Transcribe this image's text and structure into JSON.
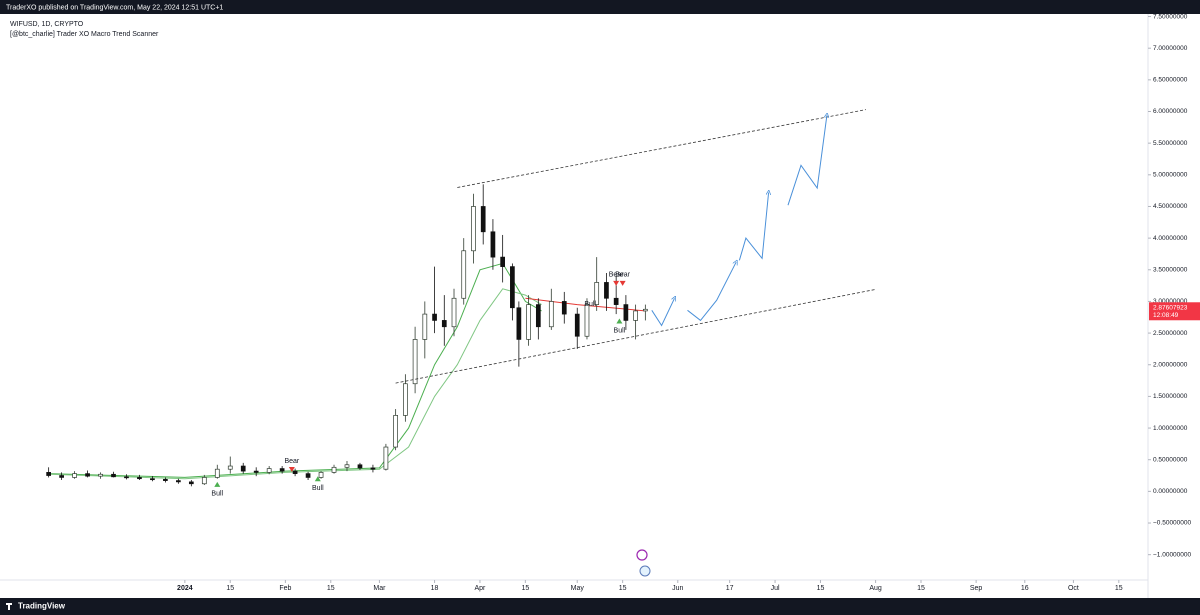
{
  "header": {
    "published": "TraderXO published on TradingView.com, May 22, 2024 12:51 UTC+1",
    "brand": "TradingView"
  },
  "chart_data": {
    "type": "candlestick",
    "title": "WIFUSD, 1D, CRYPTO",
    "subtitle": "[@btc_charlie] Trader XO Macro Trend Scanner",
    "xlim": [
      "2023-11-05",
      "2024-10-24"
    ],
    "ylim": [
      -1.4,
      7.54
    ],
    "grid": false,
    "up_color": "#2f3b2f",
    "down_color": "#111111",
    "xticks": [
      {
        "value": "2024-01-01",
        "label": "2024"
      },
      {
        "value": "2024-01-15",
        "label": "15"
      },
      {
        "value": "2024-02-01",
        "label": "Feb"
      },
      {
        "value": "2024-02-15",
        "label": "15"
      },
      {
        "value": "2024-03-01",
        "label": "Mar"
      },
      {
        "value": "2024-03-18",
        "label": "18"
      },
      {
        "value": "2024-04-01",
        "label": "Apr"
      },
      {
        "value": "2024-04-15",
        "label": "15"
      },
      {
        "value": "2024-05-01",
        "label": "May"
      },
      {
        "value": "2024-05-15",
        "label": "15"
      },
      {
        "value": "2024-06-01",
        "label": "Jun"
      },
      {
        "value": "2024-06-17",
        "label": "17"
      },
      {
        "value": "2024-07-01",
        "label": "Jul"
      },
      {
        "value": "2024-07-15",
        "label": "15"
      },
      {
        "value": "2024-08-01",
        "label": "Aug"
      },
      {
        "value": "2024-08-15",
        "label": "15"
      },
      {
        "value": "2024-09-01",
        "label": "Sep"
      },
      {
        "value": "2024-09-16",
        "label": "16"
      },
      {
        "value": "2024-10-01",
        "label": "Oct"
      },
      {
        "value": "2024-10-15",
        "label": "15"
      }
    ],
    "yticks": [
      {
        "value": 7.5,
        "label": "7.50000000"
      },
      {
        "value": 7,
        "label": "7.00000000"
      },
      {
        "value": 6.5,
        "label": "6.50000000"
      },
      {
        "value": 6,
        "label": "6.00000000"
      },
      {
        "value": 5.5,
        "label": "5.50000000"
      },
      {
        "value": 5,
        "label": "5.00000000"
      },
      {
        "value": 4.5,
        "label": "4.50000000"
      },
      {
        "value": 4,
        "label": "4.00000000"
      },
      {
        "value": 3.5,
        "label": "3.50000000"
      },
      {
        "value": 3,
        "label": "3.00000000"
      },
      {
        "value": 2.5,
        "label": "2.50000000"
      },
      {
        "value": 2,
        "label": "2.00000000"
      },
      {
        "value": 1.5,
        "label": "1.50000000"
      },
      {
        "value": 1,
        "label": "1.00000000"
      },
      {
        "value": 0.5,
        "label": "0.50000000"
      },
      {
        "value": 0,
        "label": "0.00000000"
      },
      {
        "value": -0.5,
        "label": "−0.50000000"
      },
      {
        "value": -1,
        "label": "−1.00000000"
      }
    ],
    "x": [
      "2023-11-20",
      "2023-11-24",
      "2023-11-28",
      "2023-12-02",
      "2023-12-06",
      "2023-12-10",
      "2023-12-14",
      "2023-12-18",
      "2023-12-22",
      "2023-12-26",
      "2023-12-30",
      "2024-01-03",
      "2024-01-07",
      "2024-01-11",
      "2024-01-15",
      "2024-01-19",
      "2024-01-23",
      "2024-01-27",
      "2024-01-31",
      "2024-02-04",
      "2024-02-08",
      "2024-02-12",
      "2024-02-16",
      "2024-02-20",
      "2024-02-24",
      "2024-02-28",
      "2024-03-03",
      "2024-03-06",
      "2024-03-09",
      "2024-03-12",
      "2024-03-15",
      "2024-03-18",
      "2024-03-21",
      "2024-03-24",
      "2024-03-27",
      "2024-03-30",
      "2024-04-02",
      "2024-04-05",
      "2024-04-08",
      "2024-04-11",
      "2024-04-13",
      "2024-04-16",
      "2024-04-19",
      "2024-04-23",
      "2024-04-27",
      "2024-05-01",
      "2024-05-04",
      "2024-05-07",
      "2024-05-10",
      "2024-05-13",
      "2024-05-16",
      "2024-05-19",
      "2024-05-22"
    ],
    "open": [
      0.3,
      0.25,
      0.22,
      0.28,
      0.24,
      0.27,
      0.23,
      0.22,
      0.2,
      0.19,
      0.17,
      0.15,
      0.12,
      0.22,
      0.35,
      0.4,
      0.32,
      0.3,
      0.36,
      0.32,
      0.28,
      0.22,
      0.3,
      0.38,
      0.42,
      0.37,
      0.35,
      0.7,
      1.2,
      1.7,
      2.4,
      2.8,
      2.7,
      2.6,
      3.05,
      3.8,
      4.5,
      4.1,
      3.7,
      3.55,
      2.9,
      2.4,
      2.95,
      2.6,
      3.0,
      2.8,
      2.45,
      2.95,
      3.3,
      3.05,
      2.95,
      2.7,
      2.85
    ],
    "high": [
      0.38,
      0.3,
      0.32,
      0.33,
      0.3,
      0.31,
      0.27,
      0.26,
      0.24,
      0.22,
      0.2,
      0.18,
      0.26,
      0.42,
      0.55,
      0.45,
      0.38,
      0.4,
      0.4,
      0.36,
      0.31,
      0.32,
      0.42,
      0.48,
      0.45,
      0.42,
      0.75,
      1.3,
      1.85,
      2.6,
      3.0,
      3.55,
      3.1,
      3.2,
      4.0,
      4.7,
      4.85,
      4.3,
      4.05,
      3.6,
      3.0,
      3.1,
      3.05,
      3.2,
      3.15,
      2.9,
      3.05,
      3.7,
      3.45,
      3.4,
      3.1,
      2.95,
      2.95
    ],
    "low": [
      0.22,
      0.18,
      0.2,
      0.22,
      0.2,
      0.22,
      0.19,
      0.18,
      0.16,
      0.14,
      0.12,
      0.08,
      0.1,
      0.2,
      0.28,
      0.28,
      0.24,
      0.27,
      0.28,
      0.24,
      0.18,
      0.2,
      0.28,
      0.32,
      0.34,
      0.3,
      0.33,
      0.65,
      1.1,
      1.55,
      2.1,
      2.5,
      2.3,
      2.45,
      2.95,
      3.6,
      3.9,
      3.5,
      3.3,
      2.7,
      1.97,
      2.3,
      2.4,
      2.55,
      2.65,
      2.25,
      2.4,
      2.85,
      2.85,
      2.8,
      2.55,
      2.4,
      2.7
    ],
    "close": [
      0.25,
      0.22,
      0.28,
      0.24,
      0.27,
      0.23,
      0.22,
      0.2,
      0.19,
      0.17,
      0.15,
      0.12,
      0.22,
      0.35,
      0.4,
      0.32,
      0.3,
      0.36,
      0.32,
      0.28,
      0.22,
      0.3,
      0.38,
      0.42,
      0.37,
      0.35,
      0.7,
      1.2,
      1.7,
      2.4,
      2.8,
      2.7,
      2.6,
      3.05,
      3.8,
      4.5,
      4.1,
      3.7,
      3.55,
      2.9,
      2.4,
      2.95,
      2.6,
      3.0,
      2.8,
      2.45,
      2.95,
      3.3,
      3.05,
      2.95,
      2.7,
      2.85,
      2.87607923
    ],
    "moving_averages": [
      {
        "color": "#4caf50",
        "x": [
          "2023-11-20",
          "2024-01-01",
          "2024-02-01",
          "2024-03-01",
          "2024-03-10",
          "2024-03-18",
          "2024-03-25",
          "2024-04-01",
          "2024-04-08",
          "2024-04-15",
          "2024-04-20"
        ],
        "values": [
          0.28,
          0.22,
          0.32,
          0.37,
          1.0,
          2.0,
          2.6,
          3.5,
          3.6,
          3.0,
          2.85
        ]
      },
      {
        "color": "#81c784",
        "x": [
          "2023-11-20",
          "2024-01-01",
          "2024-02-01",
          "2024-03-01",
          "2024-03-10",
          "2024-03-18",
          "2024-03-25",
          "2024-04-01",
          "2024-04-08",
          "2024-04-15",
          "2024-04-20"
        ],
        "values": [
          0.27,
          0.2,
          0.3,
          0.35,
          0.7,
          1.5,
          2.0,
          2.7,
          3.2,
          3.1,
          2.95
        ]
      },
      {
        "color": "#e53935",
        "x": [
          "2024-04-15",
          "2024-05-01",
          "2024-05-22"
        ],
        "values": [
          3.05,
          2.95,
          2.85
        ]
      }
    ],
    "trendlines": [
      {
        "color": "#333333",
        "x": [
          "2024-03-25",
          "2024-07-29"
        ],
        "values": [
          4.8,
          6.03
        ]
      },
      {
        "color": "#333333",
        "x": [
          "2024-03-06",
          "2024-08-01"
        ],
        "values": [
          1.71,
          3.19
        ]
      }
    ],
    "projection": {
      "color": "#4a90d9",
      "x": [
        "2024-05-24",
        "2024-05-27",
        "2024-05-31",
        null,
        "2024-06-04",
        "2024-06-08",
        "2024-06-13",
        "2024-06-19",
        null,
        "2024-06-20",
        "2024-06-22",
        "2024-06-27",
        "2024-06-29",
        null,
        "2024-07-05",
        "2024-07-09",
        "2024-07-14",
        "2024-07-17"
      ],
      "values": [
        2.86,
        2.62,
        3.05,
        null,
        2.86,
        2.7,
        3.02,
        3.62,
        null,
        3.65,
        4.0,
        3.68,
        4.72,
        null,
        4.52,
        5.15,
        4.79,
        5.94
      ]
    },
    "annotations": [
      {
        "text": "Bull",
        "x": "2024-01-11",
        "y": -0.04,
        "color": "#4caf50",
        "marker": "up"
      },
      {
        "text": "Bear",
        "x": "2024-02-03",
        "y": 0.48,
        "color": "#e53935",
        "marker": "down"
      },
      {
        "text": "Bull",
        "x": "2024-02-11",
        "y": 0.05,
        "color": "#4caf50",
        "marker": "up"
      },
      {
        "text": "Bear",
        "x": "2024-05-13",
        "y": 3.42,
        "color": "#e53935",
        "marker": "down"
      },
      {
        "text": "Bear",
        "x": "2024-05-15",
        "y": 3.42,
        "color": "#e53935",
        "marker": "down"
      },
      {
        "text": "Bull",
        "x": "2024-05-05",
        "y": 2.96,
        "color": "#4caf50",
        "marker": "none"
      },
      {
        "text": "Bull",
        "x": "2024-05-14",
        "y": 2.54,
        "color": "#4caf50",
        "marker": "up"
      }
    ],
    "last_price": 2.87607923,
    "countdown": "12:08:49",
    "last_price_color": "#f23645"
  }
}
